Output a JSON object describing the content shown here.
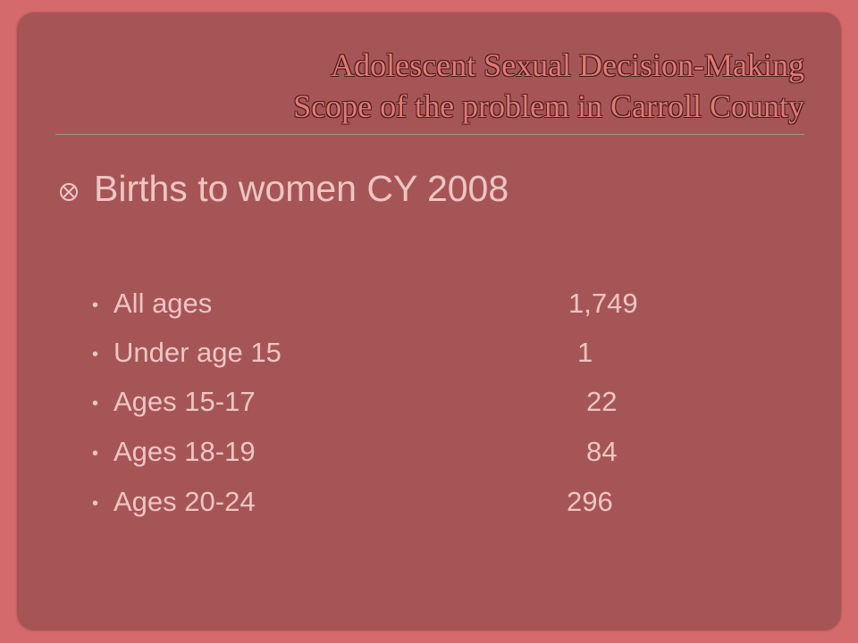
{
  "header": {
    "title_lines": [
      "Adolescent Sexual Decision-Making",
      "Scope of the problem in Carroll County"
    ]
  },
  "main_bullet": "Births to women CY 2008",
  "items": [
    {
      "label": "All ages",
      "value": "1,749"
    },
    {
      "label": "Under age 15",
      "value": "1"
    },
    {
      "label": "Ages 15-17",
      "value": "22"
    },
    {
      "label": "Ages 18-19",
      "value": "84"
    },
    {
      "label": "Ages 20-24",
      "value": "296"
    }
  ]
}
